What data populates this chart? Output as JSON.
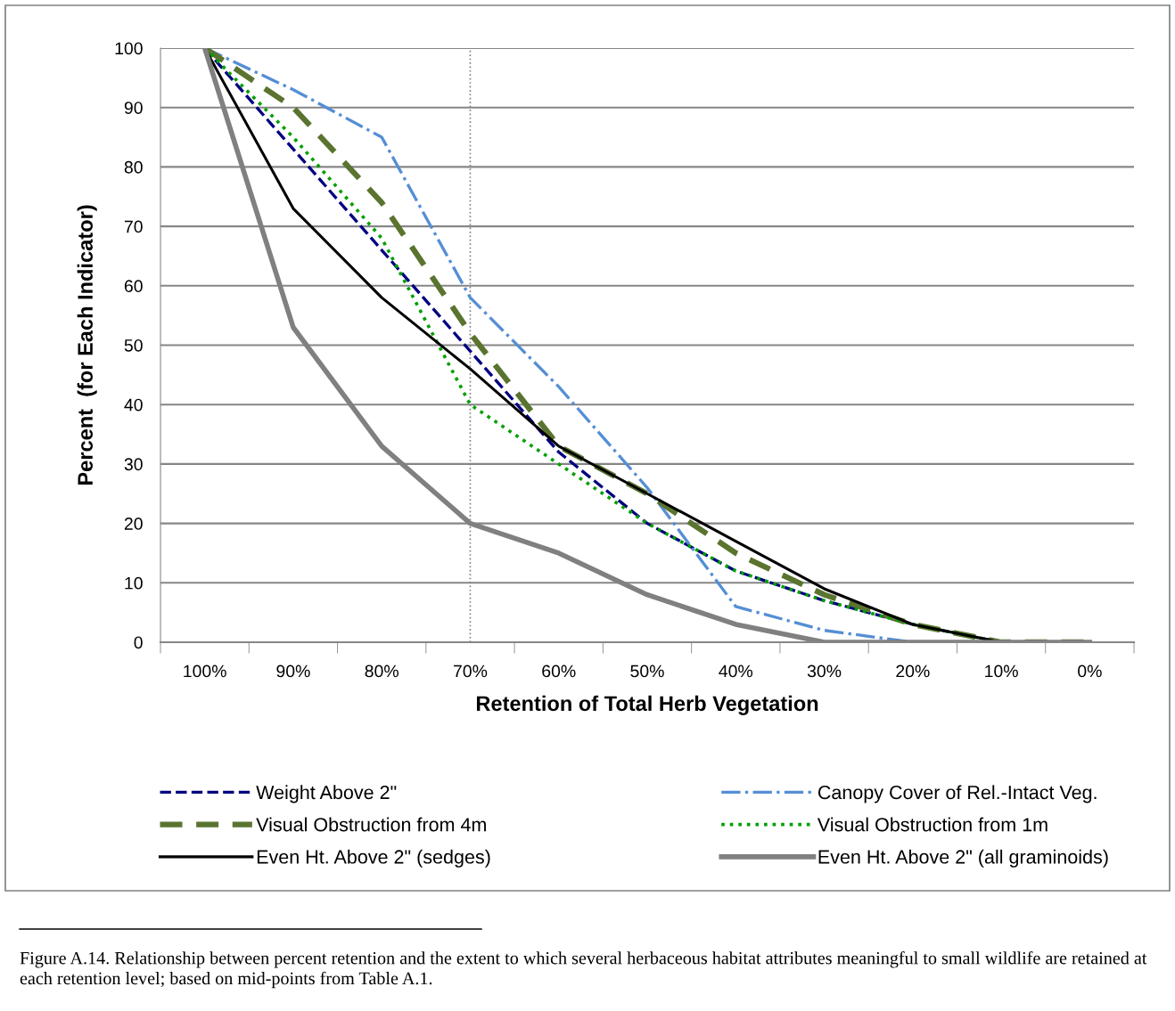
{
  "chart_data": {
    "type": "line",
    "xlabel": "Retention of Total Herb Vegetation",
    "ylabel": "Percent  (for Each Indicator)",
    "categories": [
      "100%",
      "90%",
      "80%",
      "70%",
      "60%",
      "50%",
      "40%",
      "30%",
      "20%",
      "10%",
      "0%"
    ],
    "series": [
      {
        "name": "Weight Above 2\"",
        "color": "#000080",
        "line_style": "dashed",
        "values": [
          100,
          83,
          66,
          49,
          32,
          20,
          12,
          7,
          3,
          0,
          0
        ]
      },
      {
        "name": "Canopy Cover of Rel.-Intact Veg.",
        "color": "#558ed5",
        "line_style": "dashdot",
        "values": [
          100,
          93,
          85,
          58,
          43,
          26,
          6,
          2,
          0,
          0,
          0
        ]
      },
      {
        "name": "Visual Obstruction from 4m",
        "color": "#5a7430",
        "line_style": "dashed",
        "values": [
          100,
          90,
          74,
          52,
          33,
          25,
          15,
          8,
          3,
          0,
          0
        ]
      },
      {
        "name": "Visual Obstruction from 1m",
        "color": "#00a000",
        "line_style": "dotted",
        "values": [
          100,
          85,
          68,
          40,
          30,
          20,
          12,
          7,
          3,
          0,
          0
        ]
      },
      {
        "name": "Even Ht. Above 2\" (sedges)",
        "color": "#000000",
        "line_style": "solid",
        "values": [
          100,
          73,
          58,
          46,
          33,
          25,
          17,
          9,
          3,
          0,
          0
        ]
      },
      {
        "name": "Even Ht. Above 2\" (all graminoids)",
        "color": "#808080",
        "line_style": "solid",
        "values": [
          100,
          53,
          33,
          20,
          15,
          8,
          3,
          0,
          0,
          0,
          0
        ]
      }
    ],
    "ylim": [
      0,
      100
    ],
    "yticks": [
      0,
      10,
      20,
      30,
      40,
      50,
      60,
      70,
      80,
      90,
      100
    ],
    "grid": "y",
    "legend": "bottom",
    "marker": "none",
    "ref_lines": [
      {
        "axis": "x",
        "value": "70%",
        "color": "#808080",
        "line_style": "dotted"
      }
    ],
    "annotations": [
      "Figure A.14. Relationship between percent retention and the extent to which several herbaceous habitat attributes meaningful to small wildlife are retained at each retention level; based on mid-points from Table A.1."
    ]
  }
}
